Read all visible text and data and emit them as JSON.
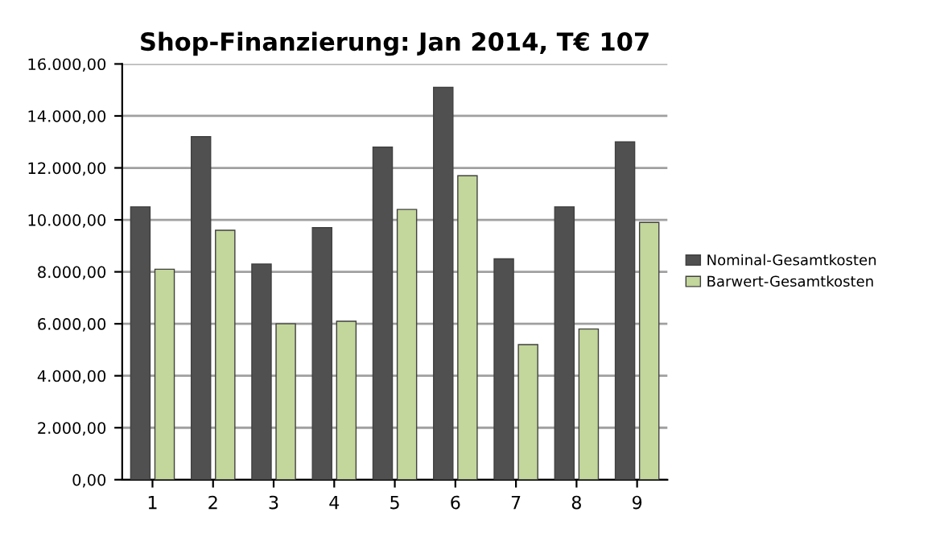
{
  "chart_data": {
    "type": "bar",
    "title": "Shop-Finanzierung: Jan 2014, T€ 107",
    "categories": [
      "1",
      "2",
      "3",
      "4",
      "5",
      "6",
      "7",
      "8",
      "9"
    ],
    "series": [
      {
        "name": "Nominal-Gesamtkosten",
        "color": "#505050",
        "values": [
          10500,
          13200,
          8300,
          9700,
          12800,
          15100,
          8500,
          10500,
          13000
        ]
      },
      {
        "name": "Barwert-Gesamtkosten",
        "color": "#c3d69b",
        "values": [
          8100,
          9600,
          6000,
          6100,
          10400,
          11700,
          5200,
          5800,
          9900
        ]
      }
    ],
    "ylim": [
      0,
      16000
    ],
    "yticks": [
      {
        "value": 0,
        "label": "0,00"
      },
      {
        "value": 2000,
        "label": "2.000,00"
      },
      {
        "value": 4000,
        "label": "4.000,00"
      },
      {
        "value": 6000,
        "label": "6.000,00"
      },
      {
        "value": 8000,
        "label": "8.000,00"
      },
      {
        "value": 10000,
        "label": "10.000,00"
      },
      {
        "value": 12000,
        "label": "12.000,00"
      },
      {
        "value": 14000,
        "label": "14.000,00"
      },
      {
        "value": 16000,
        "label": "16.000,00"
      }
    ],
    "grid": "y",
    "legend": "right"
  }
}
